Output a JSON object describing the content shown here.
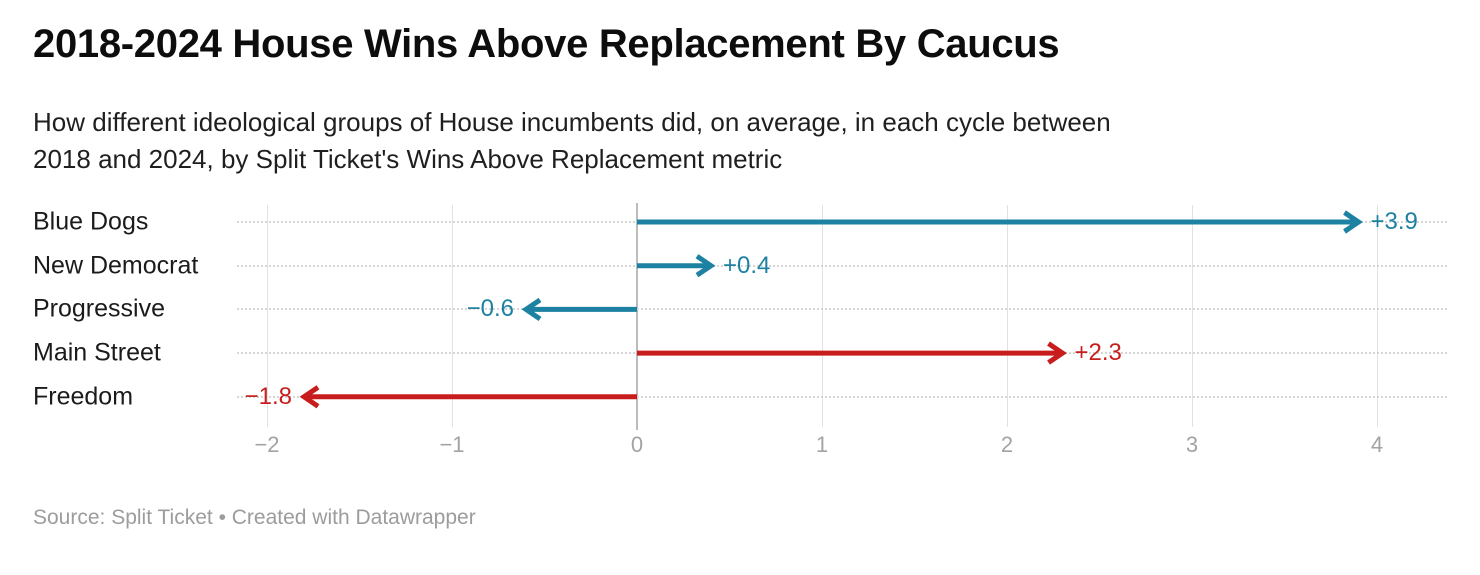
{
  "header": {
    "title": "2018-2024 House Wins Above Replacement By Caucus",
    "subtitle_lines": [
      "How different ideological groups of House incumbents did, on average, in each cycle between",
      "2018 and 2024, by Split Ticket's Wins Above Replacement metric"
    ]
  },
  "footer": {
    "text": "Source: Split Ticket • Created with Datawrapper"
  },
  "chart_data": {
    "type": "bar",
    "variant": "arrow",
    "title": "2018-2024 House Wins Above Replacement By Caucus",
    "subtitle": "How different ideological groups of House incumbents did, on average, in each cycle between 2018 and 2024, by Split Ticket's Wins Above Replacement metric",
    "categories": [
      "Blue Dogs",
      "New Democrat",
      "Progressive",
      "Main Street",
      "Freedom"
    ],
    "values": [
      3.9,
      0.4,
      -0.6,
      2.3,
      -1.8
    ],
    "value_labels": [
      "+3.9",
      "+0.4",
      "−0.6",
      "+2.3",
      "−1.8"
    ],
    "bar_colors": [
      "#1d81a2",
      "#1d81a2",
      "#1d81a2",
      "#c71e1d",
      "#c71e1d"
    ],
    "baseline": 0,
    "xlabel": "",
    "ylabel": "",
    "x_ticks": [
      -2,
      -1,
      0,
      1,
      2,
      3,
      4
    ],
    "x_tick_labels": [
      "−2",
      "−1",
      "0",
      "1",
      "2",
      "3",
      "4"
    ],
    "xlim": [
      -2.2,
      4.4
    ],
    "grid": true,
    "legend": "none",
    "accent_blue": "#1d81a2",
    "accent_red": "#c71e1d"
  }
}
